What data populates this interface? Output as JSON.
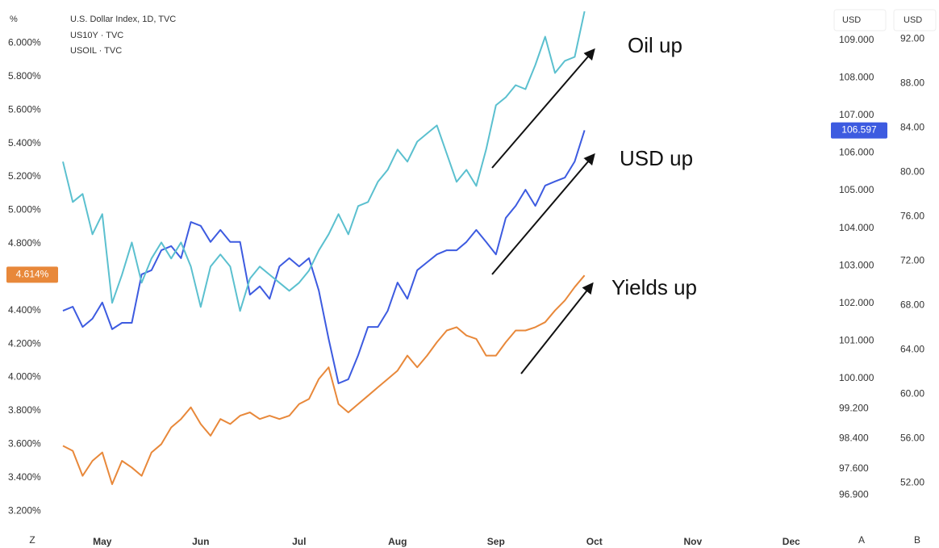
{
  "chart_data": {
    "type": "line",
    "legend": [
      "U.S. Dollar Index, 1D, TVC",
      "US10Y · TVC",
      "USOIL · TVC"
    ],
    "axis_headers": {
      "left": "%",
      "y2": "USD",
      "y3": "USD"
    },
    "corner_labels": {
      "left": "Z",
      "y2": "A",
      "y3": "B"
    },
    "categories": [
      null,
      null,
      null,
      null,
      "May",
      null,
      null,
      null,
      null,
      null,
      null,
      null,
      null,
      null,
      "Jun",
      null,
      null,
      null,
      null,
      null,
      null,
      null,
      null,
      null,
      "Jul",
      null,
      null,
      null,
      null,
      null,
      null,
      null,
      null,
      null,
      "Aug",
      null,
      null,
      null,
      null,
      null,
      null,
      null,
      null,
      null,
      "Sep",
      null,
      null,
      null,
      null,
      null,
      null,
      null,
      null,
      null,
      "Oct",
      null,
      null,
      null,
      null,
      null,
      null,
      null,
      null,
      null,
      "Nov",
      null,
      null,
      null,
      null,
      null,
      null,
      null,
      null,
      null,
      "Dec",
      null,
      null,
      null,
      null,
      null
    ],
    "ylim": [
      3.07,
      6.21
    ],
    "yticks": [
      {
        "value": 3.2,
        "label": "3.200%"
      },
      {
        "value": 3.4,
        "label": "3.400%"
      },
      {
        "value": 3.6,
        "label": "3.600%"
      },
      {
        "value": 3.8,
        "label": "3.800%"
      },
      {
        "value": 4.0,
        "label": "4.000%"
      },
      {
        "value": 4.2,
        "label": "4.200%"
      },
      {
        "value": 4.4,
        "label": "4.400%"
      },
      {
        "value": 4.8,
        "label": "4.800%"
      },
      {
        "value": 5.0,
        "label": "5.000%"
      },
      {
        "value": 5.2,
        "label": "5.200%"
      },
      {
        "value": 5.4,
        "label": "5.400%"
      },
      {
        "value": 5.6,
        "label": "5.600%"
      },
      {
        "value": 5.8,
        "label": "5.800%"
      },
      {
        "value": 6.0,
        "label": "6.000%"
      }
    ],
    "y2lim": [
      95.9,
      109.85
    ],
    "y2ticks": [
      {
        "value": 96.9,
        "label": "96.900"
      },
      {
        "value": 97.6,
        "label": "97.600"
      },
      {
        "value": 98.4,
        "label": "98.400"
      },
      {
        "value": 99.2,
        "label": "99.200"
      },
      {
        "value": 100,
        "label": "100.000"
      },
      {
        "value": 101,
        "label": "101.000"
      },
      {
        "value": 102,
        "label": "102.000"
      },
      {
        "value": 103,
        "label": "103.000"
      },
      {
        "value": 104,
        "label": "104.000"
      },
      {
        "value": 105,
        "label": "105.000"
      },
      {
        "value": 106,
        "label": "106.000"
      },
      {
        "value": 107,
        "label": "107.000"
      },
      {
        "value": 108,
        "label": "108.000"
      },
      {
        "value": 109,
        "label": "109.000"
      }
    ],
    "y3lim": [
      47.5,
      94.8
    ],
    "y3ticks": [
      {
        "value": 52,
        "label": "52.00"
      },
      {
        "value": 56,
        "label": "56.00"
      },
      {
        "value": 60,
        "label": "60.00"
      },
      {
        "value": 64,
        "label": "64.00"
      },
      {
        "value": 68,
        "label": "68.00"
      },
      {
        "value": 72,
        "label": "72.00"
      },
      {
        "value": 76,
        "label": "76.00"
      },
      {
        "value": 80,
        "label": "80.00"
      },
      {
        "value": 84,
        "label": "84.00"
      },
      {
        "value": 88,
        "label": "88.00"
      },
      {
        "value": 92,
        "label": "92.00"
      }
    ],
    "series": [
      {
        "name": "US10Y",
        "color": "#e8883a",
        "axis": "y",
        "last_value": {
          "value": 4.614,
          "label": "4.614%"
        },
        "values": [
          3.59,
          3.56,
          3.41,
          3.5,
          3.55,
          3.36,
          3.5,
          3.46,
          3.41,
          3.55,
          3.6,
          3.7,
          3.75,
          3.82,
          3.72,
          3.65,
          3.75,
          3.72,
          3.77,
          3.79,
          3.75,
          3.77,
          3.75,
          3.77,
          3.84,
          3.87,
          3.99,
          4.06,
          3.84,
          3.79,
          3.84,
          3.89,
          3.94,
          3.99,
          4.04,
          4.13,
          4.06,
          4.13,
          4.21,
          4.28,
          4.3,
          4.25,
          4.23,
          4.13,
          4.13,
          4.21,
          4.28,
          4.28,
          4.3,
          4.33,
          4.4,
          4.46,
          4.54,
          4.61,
          null,
          null,
          null,
          null,
          null,
          null,
          null,
          null,
          null,
          null,
          null,
          null,
          null,
          null,
          null,
          null,
          null,
          null,
          null,
          null,
          null,
          null,
          null,
          null,
          null,
          null
        ]
      },
      {
        "name": "DXY",
        "color": "#3d5be0",
        "axis": "y2",
        "last_value": {
          "value": 106.597,
          "label": "106.597"
        },
        "values": [
          101.8,
          101.91,
          101.37,
          101.59,
          102.02,
          101.31,
          101.48,
          101.48,
          102.77,
          102.88,
          103.41,
          103.52,
          103.2,
          104.16,
          104.06,
          103.63,
          103.95,
          103.63,
          103.63,
          102.23,
          102.45,
          102.12,
          102.98,
          103.2,
          102.98,
          103.2,
          102.34,
          101.05,
          99.87,
          99.98,
          100.62,
          101.37,
          101.37,
          101.8,
          102.55,
          102.12,
          102.88,
          103.09,
          103.3,
          103.41,
          103.41,
          103.63,
          103.95,
          103.63,
          103.3,
          104.27,
          104.59,
          105.02,
          104.59,
          105.13,
          105.24,
          105.34,
          105.77,
          106.6,
          null,
          null,
          null,
          null,
          null,
          null,
          null,
          null,
          null,
          null,
          null,
          null,
          null,
          null,
          null,
          null,
          null,
          null,
          null,
          null,
          null,
          null,
          null,
          null,
          null,
          null
        ]
      },
      {
        "name": "USOIL",
        "color": "#5bc0cf",
        "axis": "y3",
        "values": [
          80.95,
          77.31,
          78.04,
          74.4,
          76.22,
          68.22,
          70.76,
          73.67,
          70.04,
          72.22,
          73.67,
          72.22,
          73.67,
          71.49,
          67.85,
          71.49,
          72.58,
          71.49,
          67.49,
          70.4,
          71.49,
          70.76,
          70.04,
          69.31,
          70.04,
          71.13,
          72.95,
          74.4,
          76.22,
          74.4,
          76.95,
          77.31,
          79.13,
          80.22,
          82.04,
          80.95,
          82.76,
          83.49,
          84.22,
          81.67,
          79.13,
          80.22,
          78.76,
          82.04,
          86.04,
          86.76,
          87.85,
          87.49,
          89.67,
          92.22,
          88.95,
          90.04,
          90.4,
          94.5,
          null,
          null,
          null,
          null,
          null,
          null,
          null,
          null,
          null,
          null,
          null,
          null,
          null,
          null,
          null,
          null,
          null,
          null,
          null,
          null,
          null,
          null,
          null,
          null,
          null,
          null
        ]
      }
    ],
    "annotations": [
      "Oil up",
      "USD up",
      "Yields up"
    ]
  }
}
